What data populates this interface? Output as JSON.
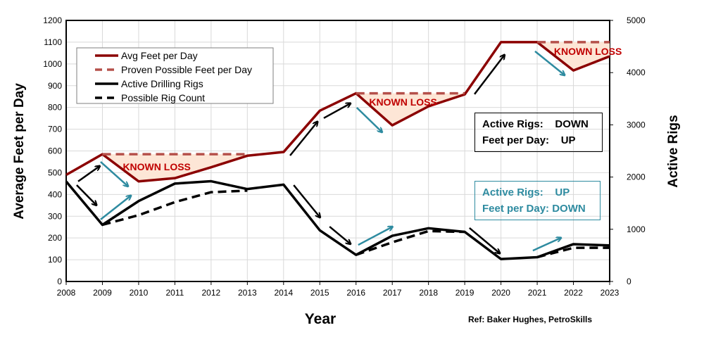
{
  "chart_data": {
    "type": "line",
    "xlabel": "Year",
    "ylabel": "Average Feet per Day",
    "y2label": "Active Rigs",
    "source": "Ref: Baker Hughes, PetroSkills",
    "x": [
      2008,
      2009,
      2010,
      2011,
      2012,
      2013,
      2014,
      2015,
      2016,
      2017,
      2018,
      2019,
      2020,
      2021,
      2022,
      2023
    ],
    "xlim": [
      2008,
      2023
    ],
    "ylim": [
      0,
      1200
    ],
    "y2lim": [
      0,
      5000
    ],
    "yticks": [
      0,
      100,
      200,
      300,
      400,
      500,
      600,
      700,
      800,
      900,
      1000,
      1100,
      1200
    ],
    "y2ticks": [
      0,
      1000,
      2000,
      3000,
      4000,
      5000
    ],
    "grid": true,
    "legend_position": "top-left",
    "series": [
      {
        "name": "Avg Feet per Day",
        "axis": "left",
        "color": "#8b0000",
        "dash": false,
        "values": [
          490,
          585,
          460,
          475,
          525,
          578,
          595,
          785,
          865,
          718,
          805,
          860,
          1100,
          1100,
          970,
          1035
        ]
      },
      {
        "name": "Proven Possible Feet per Day",
        "axis": "left",
        "color": "#b5504a",
        "dash": true,
        "values": [
          null,
          585,
          585,
          585,
          585,
          585,
          null,
          null,
          865,
          865,
          865,
          865,
          null,
          1100,
          1100,
          1100
        ]
      },
      {
        "name": "Active Drilling Rigs",
        "axis": "right",
        "color": "#000000",
        "dash": false,
        "values": [
          1915,
          1085,
          1540,
          1875,
          1920,
          1770,
          1855,
          980,
          510,
          875,
          1020,
          950,
          430,
          465,
          715,
          690
        ]
      },
      {
        "name": "Possible Rig Count",
        "axis": "right",
        "color": "#000000",
        "dash": true,
        "values": [
          null,
          1085,
          1270,
          1520,
          1710,
          1740,
          null,
          null,
          510,
          750,
          965,
          950,
          null,
          465,
          645,
          645
        ]
      }
    ],
    "loss_regions": [
      {
        "label": "KNOWN LOSS",
        "from": 2009,
        "to": 2013,
        "label_at": [
          2010.5,
          527
        ]
      },
      {
        "label": "KNOWN LOSS",
        "from": 2016,
        "to": 2019,
        "label_at": [
          2017.3,
          825
        ]
      },
      {
        "label": "KNOWN LOSS",
        "from": 2021,
        "to": 2023,
        "label_at": [
          2022.4,
          1058
        ]
      }
    ],
    "arrows": [
      {
        "color": "#000000",
        "from": [
          2008.33,
          460
        ],
        "to": [
          2008.93,
          531
        ]
      },
      {
        "color": "#000000",
        "from": [
          2008.29,
          443
        ],
        "to": [
          2008.84,
          350
        ]
      },
      {
        "color": "#2e8ba0",
        "from": [
          2008.95,
          550
        ],
        "to": [
          2009.71,
          437
        ]
      },
      {
        "color": "#2e8ba0",
        "from": [
          2008.95,
          285
        ],
        "to": [
          2009.79,
          395
        ]
      },
      {
        "color": "#000000",
        "from": [
          2014.18,
          579
        ],
        "to": [
          2014.94,
          735
        ]
      },
      {
        "color": "#000000",
        "from": [
          2015.11,
          751
        ],
        "to": [
          2015.85,
          819
        ]
      },
      {
        "color": "#000000",
        "from": [
          2014.28,
          443
        ],
        "to": [
          2015.01,
          294
        ]
      },
      {
        "color": "#000000",
        "from": [
          2015.27,
          252
        ],
        "to": [
          2015.85,
          172
        ]
      },
      {
        "color": "#2e8ba0",
        "from": [
          2016.02,
          799
        ],
        "to": [
          2016.72,
          686
        ]
      },
      {
        "color": "#2e8ba0",
        "from": [
          2016.06,
          168
        ],
        "to": [
          2017.01,
          252
        ]
      },
      {
        "color": "#000000",
        "from": [
          2019.27,
          861
        ],
        "to": [
          2020.1,
          1042
        ]
      },
      {
        "color": "#000000",
        "from": [
          2019.13,
          246
        ],
        "to": [
          2019.97,
          129
        ]
      },
      {
        "color": "#2e8ba0",
        "from": [
          2020.94,
          1058
        ],
        "to": [
          2021.76,
          948
        ]
      },
      {
        "color": "#2e8ba0",
        "from": [
          2020.88,
          142
        ],
        "to": [
          2021.66,
          201
        ]
      }
    ],
    "annotation_boxes": [
      {
        "text": "Active Rigs:    DOWN\nFeet per Day:    UP",
        "color": "#000000"
      },
      {
        "text": "Active Rigs:    UP\nFeet per Day: DOWN",
        "color": "#2e8ba0"
      }
    ]
  }
}
